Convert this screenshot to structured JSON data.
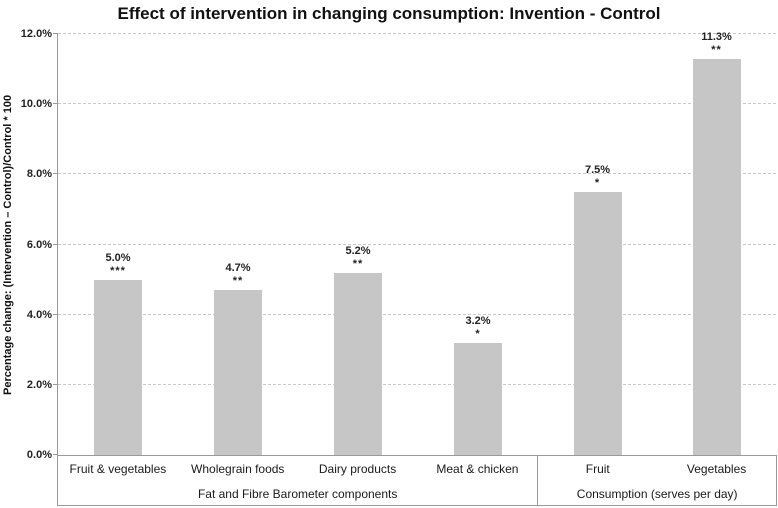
{
  "chart_data": {
    "type": "bar",
    "title": "Effect of intervention in changing consumption: Invention - Control",
    "ylabel": "Percentage change: (Intervention – Control)/Control * 100",
    "ylim": [
      0,
      12
    ],
    "grid": true,
    "legend_position": "none",
    "bar_color": "#c6c6c6",
    "gridline_color": "#c8c8c8",
    "axis_color": "#9a9a9a",
    "yticks": [
      {
        "value": 0,
        "label": "0.0%"
      },
      {
        "value": 2,
        "label": "2.0%"
      },
      {
        "value": 4,
        "label": "4.0%"
      },
      {
        "value": 6,
        "label": "6.0%"
      },
      {
        "value": 8,
        "label": "8.0%"
      },
      {
        "value": 10,
        "label": "10.0%"
      },
      {
        "value": 12,
        "label": "12.0%"
      }
    ],
    "groups": [
      {
        "label": "Fat and Fibre Barometer components",
        "bars": [
          {
            "category": "Fruit & vegetables",
            "value": 5.0,
            "value_label": "5.0%",
            "significance": "***"
          },
          {
            "category": "Wholegrain foods",
            "value": 4.7,
            "value_label": "4.7%",
            "significance": "**"
          },
          {
            "category": "Dairy products",
            "value": 5.2,
            "value_label": "5.2%",
            "significance": "**"
          },
          {
            "category": "Meat & chicken",
            "value": 3.2,
            "value_label": "3.2%",
            "significance": "*"
          }
        ]
      },
      {
        "label": "Consumption (serves per day)",
        "bars": [
          {
            "category": "Fruit",
            "value": 7.5,
            "value_label": "7.5%",
            "significance": "*"
          },
          {
            "category": "Vegetables",
            "value": 11.3,
            "value_label": "11.3%",
            "significance": "**"
          }
        ]
      }
    ]
  }
}
